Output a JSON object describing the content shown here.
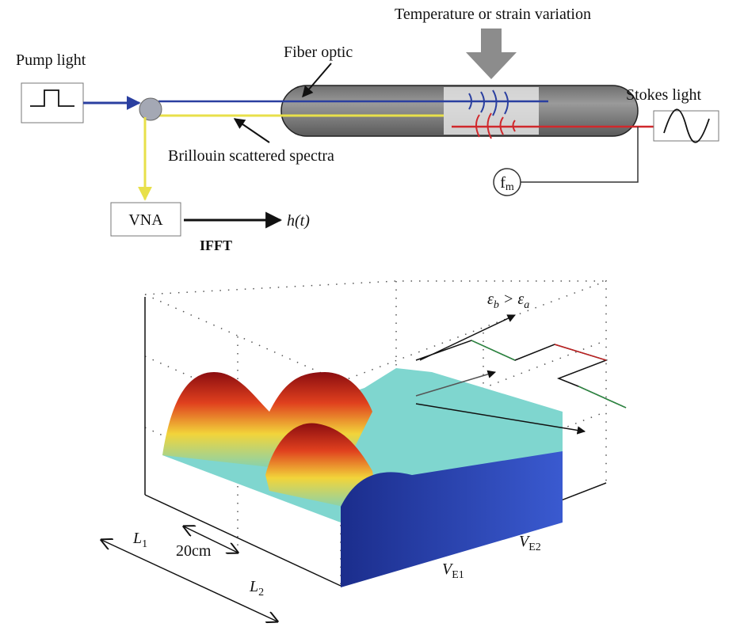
{
  "top": {
    "disturbance": "Temperature or strain variation",
    "fiber": "Fiber optic",
    "pump": "Pump light",
    "stokes": "Stokes light",
    "brillouin": "Brillouin scattered spectra",
    "modulation": {
      "base": "f",
      "sub": "m"
    },
    "analyzer": "VNA",
    "output": "h(t)",
    "transform": "IFFT"
  },
  "plot": {
    "strain": {
      "left": "ε",
      "left_sub": "b",
      "relation": " > ",
      "right": "ε",
      "right_sub": "a"
    },
    "length1": {
      "base": "L",
      "sub": "1"
    },
    "resolution": "20cm",
    "length2": {
      "base": "L",
      "sub": "2"
    },
    "voltage1": {
      "base": "V",
      "sub": "E1"
    },
    "voltage2": {
      "base": "V",
      "sub": "E2"
    }
  }
}
